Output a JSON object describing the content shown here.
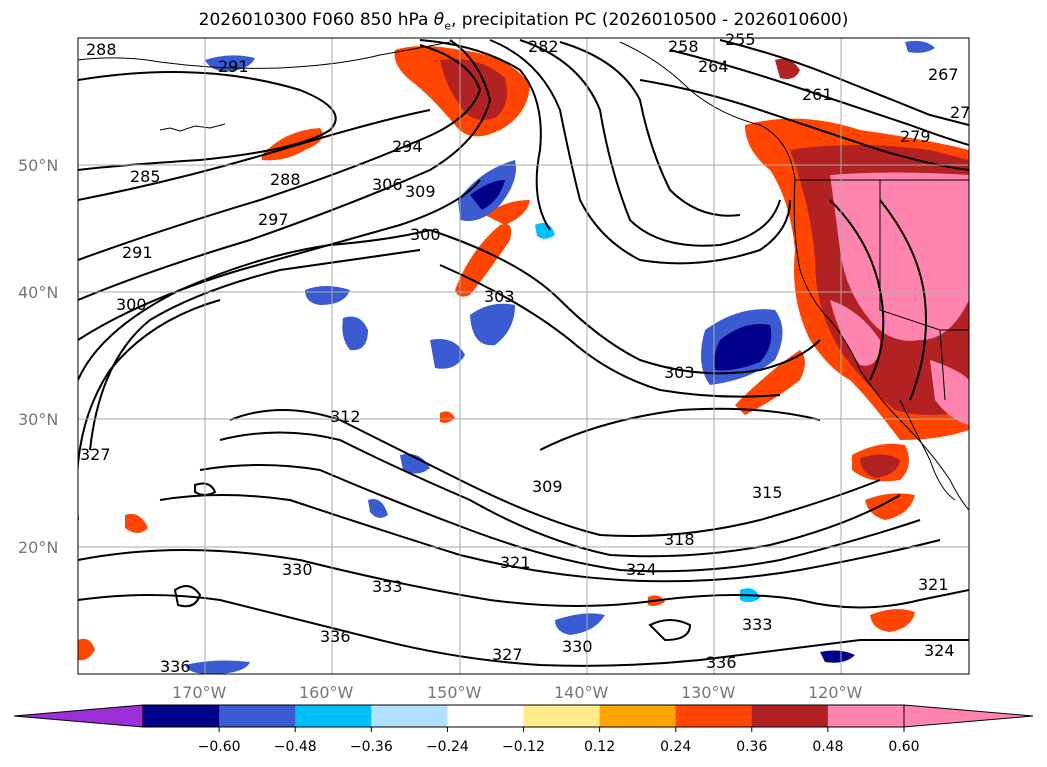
{
  "title_main": "2026010300 F060 850 hPa ",
  "title_symbol": "θ",
  "title_sub": "e",
  "title_rest": ", precipitation PC (2026010500 - 2026010600)",
  "lat_labels": [
    "50°N",
    "40°N",
    "30°N",
    "20°N"
  ],
  "lon_labels": [
    "170°W",
    "160°W",
    "150°W",
    "140°W",
    "130°W",
    "120°W"
  ],
  "colorbar": {
    "ticks": [
      "−0.60",
      "−0.48",
      "−0.36",
      "−0.24",
      "−0.12",
      "0.12",
      "0.24",
      "0.36",
      "0.48",
      "0.60"
    ],
    "colors": [
      "#9b30d9",
      "#00008b",
      "#3a5bd1",
      "#00bfff",
      "#b0e2ff",
      "#ffffff",
      "#ffeb8a",
      "#ffa500",
      "#ff4500",
      "#b22222",
      "#ff85b0",
      "#ff85b0"
    ]
  },
  "contour_labels": [
    "288",
    "291",
    "282",
    "258",
    "255",
    "264",
    "267",
    "261",
    "279",
    "27",
    "285",
    "288",
    "294",
    "306",
    "309",
    "297",
    "291",
    "300",
    "300",
    "303",
    "303",
    "312",
    "309",
    "315",
    "318",
    "324",
    "321",
    "327",
    "330",
    "333",
    "321",
    "336",
    "327",
    "330",
    "333",
    "336",
    "336",
    "324"
  ]
}
